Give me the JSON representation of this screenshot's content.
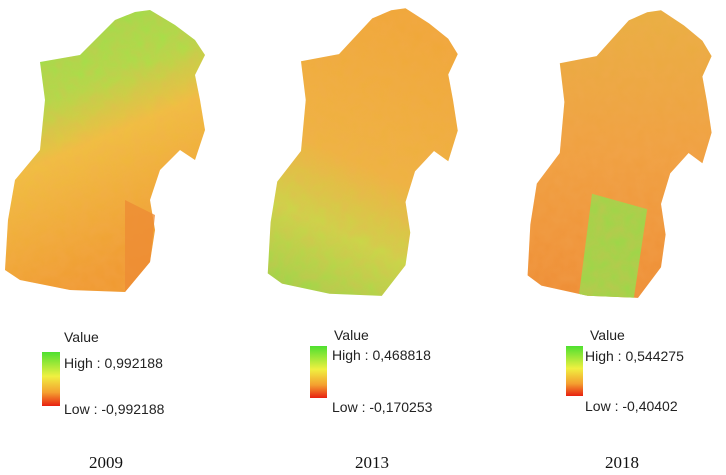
{
  "panels": [
    {
      "year": "2009",
      "legend_title": "Value",
      "high_label": "High : 0,992188",
      "low_label": "Low : -0,992188"
    },
    {
      "year": "2013",
      "legend_title": "Value",
      "high_label": "High : 0,468818",
      "low_label": "Low : -0,170253"
    },
    {
      "year": "2018",
      "legend_title": "Value",
      "high_label": "High : 0,544275",
      "low_label": "Low : -0,40402"
    }
  ]
}
